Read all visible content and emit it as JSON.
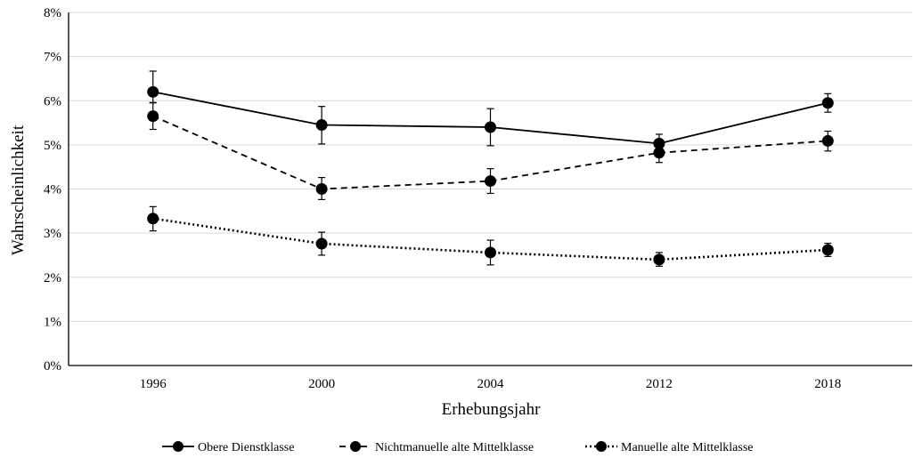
{
  "chart_data": {
    "type": "line",
    "xlabel": "Erhebungsjahr",
    "ylabel": "Wahrscheinlichkeit",
    "categories": [
      "1996",
      "2000",
      "2004",
      "2012",
      "2018"
    ],
    "ylim": [
      0,
      8
    ],
    "yticks": [
      "0%",
      "1%",
      "2%",
      "3%",
      "4%",
      "5%",
      "6%",
      "7%",
      "8%"
    ],
    "y_unit": "percent",
    "grid": "horizontal",
    "legend_position": "bottom",
    "series": [
      {
        "name": "Obere Dienstklasse",
        "line_style": "solid",
        "values": [
          6.2,
          5.45,
          5.4,
          5.03,
          5.95
        ],
        "err_low": [
          5.95,
          5.02,
          4.98,
          4.82,
          5.74
        ],
        "err_high": [
          6.67,
          5.87,
          5.82,
          5.24,
          6.16
        ]
      },
      {
        "name": "Nichtmanuelle alte Mittelklasse",
        "line_style": "dashed",
        "values": [
          5.65,
          4.0,
          4.18,
          4.82,
          5.09
        ],
        "err_low": [
          5.35,
          3.76,
          3.9,
          4.6,
          4.86
        ],
        "err_high": [
          5.96,
          4.26,
          4.46,
          5.04,
          5.31
        ]
      },
      {
        "name": "Manuelle alte Mittelklasse",
        "line_style": "dotted",
        "values": [
          3.33,
          2.76,
          2.56,
          2.4,
          2.62
        ],
        "err_low": [
          3.05,
          2.5,
          2.28,
          2.25,
          2.47
        ],
        "err_high": [
          3.6,
          3.02,
          2.84,
          2.56,
          2.77
        ]
      }
    ],
    "colors": {
      "line": "#000000",
      "grid": "#d9d9d9"
    }
  }
}
